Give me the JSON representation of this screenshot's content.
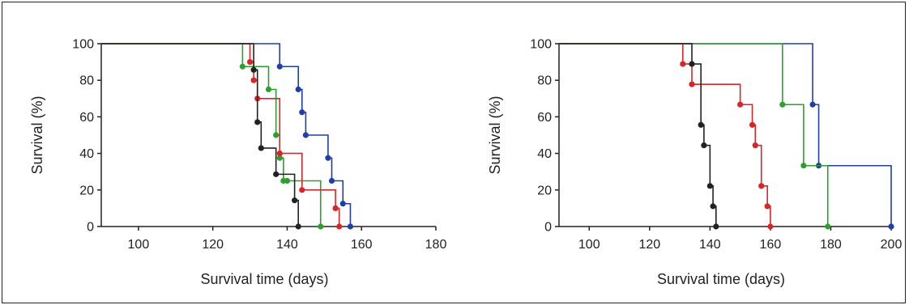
{
  "chart_data": [
    {
      "type": "line",
      "subtype": "kaplan-meier survival",
      "title": "",
      "xlabel": "Survival time (days)",
      "ylabel": "Survival (%)",
      "xlim": [
        90,
        180
      ],
      "ylim": [
        0,
        100
      ],
      "xticks": [
        100,
        120,
        140,
        160,
        180
      ],
      "yticks": [
        0,
        20,
        40,
        60,
        80,
        100
      ],
      "grid": false,
      "legend": "none",
      "series": [
        {
          "color": "#1f3fa6",
          "x": [
            90,
            138,
            143,
            144,
            145,
            151,
            152,
            155,
            157
          ],
          "y": [
            100,
            87.5,
            75,
            62.5,
            50,
            37.5,
            25,
            12.5,
            0
          ]
        },
        {
          "color": "#2ca02c",
          "x": [
            90,
            128,
            135,
            137,
            138,
            139,
            140,
            149
          ],
          "y": [
            100,
            87.5,
            75,
            50,
            37.5,
            25,
            25,
            0
          ]
        },
        {
          "color": "#d62728",
          "x": [
            90,
            130,
            131,
            132,
            138,
            144,
            153,
            154
          ],
          "y": [
            100,
            90,
            80,
            70,
            40,
            20,
            10,
            0
          ]
        },
        {
          "color": "#222222",
          "x": [
            90,
            131,
            132,
            133,
            137,
            142,
            143
          ],
          "y": [
            100,
            85.7,
            57.1,
            42.9,
            28.6,
            14.3,
            0
          ]
        }
      ]
    },
    {
      "type": "line",
      "subtype": "kaplan-meier survival",
      "title": "",
      "xlabel": "Survival time (days)",
      "ylabel": "Survival (%)",
      "xlim": [
        90,
        200
      ],
      "ylim": [
        0,
        100
      ],
      "xticks": [
        100,
        120,
        140,
        160,
        180,
        200
      ],
      "yticks": [
        0,
        20,
        40,
        60,
        80,
        100
      ],
      "grid": false,
      "legend": "none",
      "series": [
        {
          "color": "#1f3fa6",
          "x": [
            90,
            174,
            176,
            200
          ],
          "y": [
            100,
            66.7,
            33.3,
            0
          ]
        },
        {
          "color": "#2ca02c",
          "x": [
            90,
            164,
            171,
            179
          ],
          "y": [
            100,
            66.7,
            33.3,
            0
          ]
        },
        {
          "color": "#d62728",
          "x": [
            90,
            131,
            134,
            150,
            154,
            155,
            157,
            159,
            160
          ],
          "y": [
            100,
            88.9,
            77.8,
            66.7,
            55.6,
            44.4,
            22.2,
            11.1,
            0
          ]
        },
        {
          "color": "#222222",
          "x": [
            90,
            134,
            137,
            138,
            140,
            141,
            142
          ],
          "y": [
            100,
            88.9,
            55.6,
            44.4,
            22.2,
            11.1,
            0
          ]
        }
      ]
    }
  ]
}
